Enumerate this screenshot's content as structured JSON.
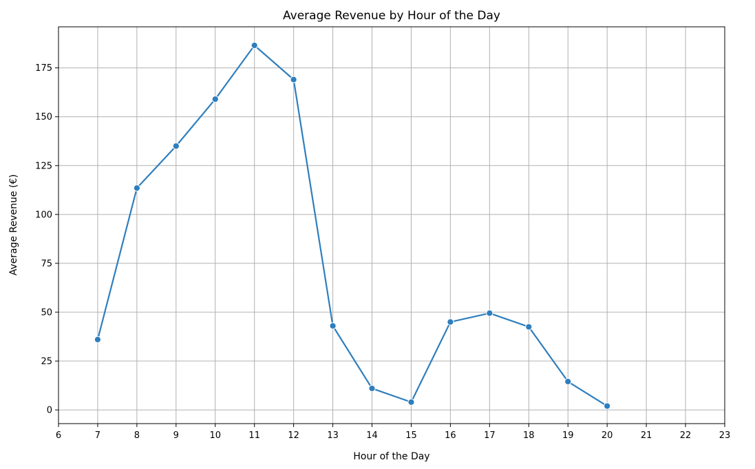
{
  "chart_data": {
    "type": "line",
    "title": "Average Revenue by Hour of the Day",
    "xlabel": "Hour of the Day",
    "ylabel": "Average Revenue (€)",
    "xlim": [
      6,
      23
    ],
    "ylim": [
      -7,
      196
    ],
    "xticks": [
      6,
      7,
      8,
      9,
      10,
      11,
      12,
      13,
      14,
      15,
      16,
      17,
      18,
      19,
      20,
      21,
      22,
      23
    ],
    "yticks": [
      0,
      25,
      50,
      75,
      100,
      125,
      150,
      175
    ],
    "grid": true,
    "legend": "none",
    "series": [
      {
        "color": "#2e7ebd",
        "x": [
          7,
          8,
          9,
          10,
          11,
          12,
          13,
          14,
          15,
          16,
          17,
          18,
          19,
          20
        ],
        "y": [
          36,
          113.5,
          135,
          159,
          186.5,
          169,
          43,
          11,
          4,
          45,
          49.5,
          42.5,
          14.5,
          2
        ]
      }
    ]
  }
}
